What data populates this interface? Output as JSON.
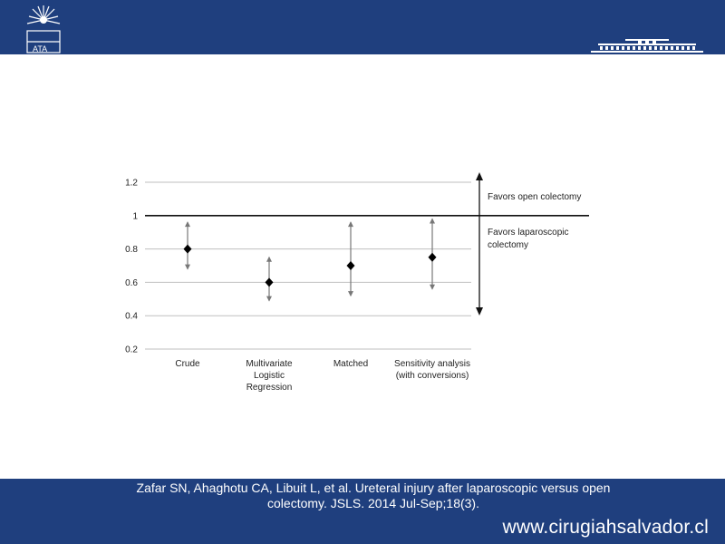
{
  "slide": {
    "citation_line1": "Zafar SN, Ahaghotu CA, Libuit L, et al. Ureteral injury after laparoscopic versus open",
    "citation_line2": "colectomy. JSLS. 2014 Jul-Sep;18(3).",
    "website": "www.cirugiahsalvador.cl",
    "logo_left_text": "ATA",
    "colors": {
      "bar": "#1f3f7e",
      "text_on_bar": "#ffffff"
    }
  },
  "chart_data": {
    "type": "scatter",
    "categories": [
      [
        "Crude"
      ],
      [
        "Multivariate",
        "Logistic",
        "Regression"
      ],
      [
        "Matched"
      ],
      [
        "Sensitivity analysis",
        "(with conversions)"
      ]
    ],
    "estimates": [
      0.8,
      0.6,
      0.7,
      0.75
    ],
    "ci_lower": [
      0.68,
      0.49,
      0.52,
      0.56
    ],
    "ci_upper": [
      0.96,
      0.75,
      0.96,
      0.98
    ],
    "ylim": [
      0.2,
      1.2
    ],
    "yticks": [
      "0.2",
      "0.4",
      "0.6",
      "0.8",
      "1",
      "1.2"
    ],
    "reference_line": 1,
    "grid": true,
    "annotations": {
      "above": [
        "Favors open colectomy"
      ],
      "below": [
        "Favors laparoscopic",
        "colectomy"
      ]
    }
  }
}
